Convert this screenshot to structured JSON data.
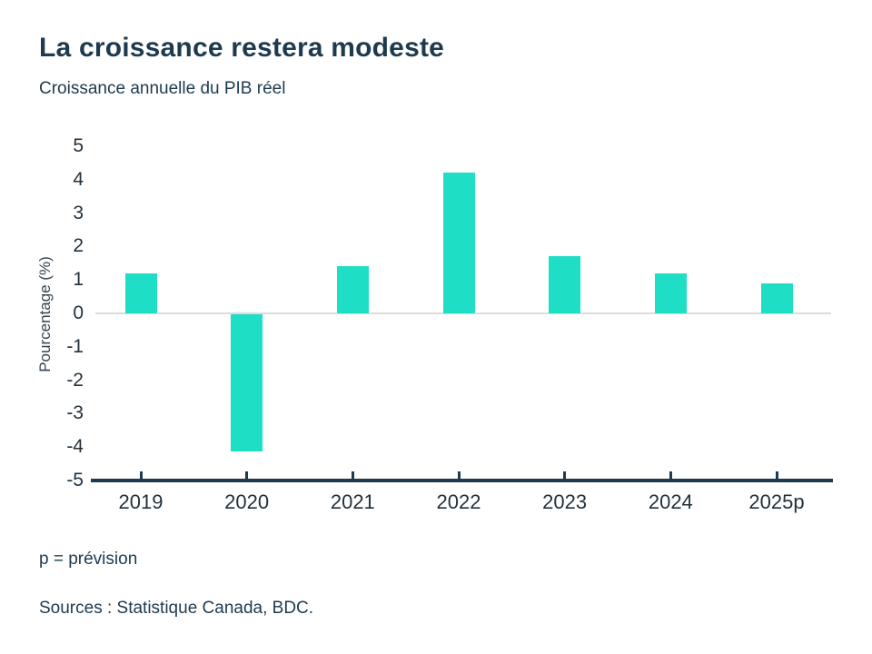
{
  "page": {
    "footnote": "p = prévision",
    "sources": "Sources : Statistique Canada, BDC."
  },
  "colors": {
    "bar": "#1FDEC6",
    "text_dark": "#1E3A4E",
    "axis_line": "#1E3A4E",
    "zero_line": "#DCDCDA"
  },
  "chart_data": {
    "type": "bar",
    "title": "La croissance restera modeste",
    "subtitle": "Croissance annuelle du PIB réel",
    "categories": [
      "2019",
      "2020",
      "2021",
      "2022",
      "2023",
      "2024",
      "2025p"
    ],
    "values": [
      1.2,
      -4.1,
      1.4,
      4.2,
      1.7,
      1.2,
      0.9
    ],
    "xlabel": "",
    "ylabel": "Pourcentage (%)",
    "ylim": [
      -5,
      5
    ],
    "yticks": [
      5,
      4,
      3,
      2,
      1,
      0,
      -1,
      -2,
      -3,
      -4,
      -5
    ],
    "grid": "zero-line-only",
    "legend": "none",
    "bar_color": "#1FDEC6"
  }
}
